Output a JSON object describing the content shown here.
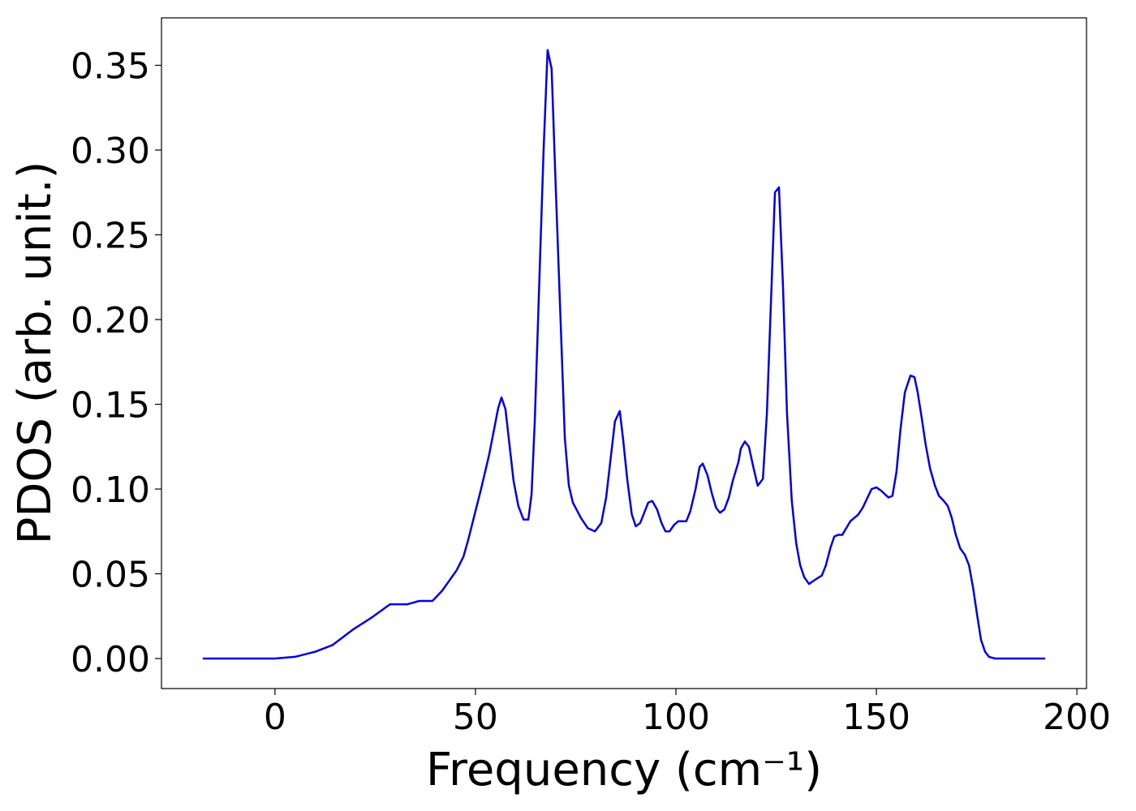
{
  "chart_data": {
    "type": "line",
    "xlabel": "Frequency (cm⁻¹)",
    "ylabel": "PDOS (arb. unit.)",
    "xlim": [
      -28.3,
      202.4
    ],
    "ylim": [
      -0.0177,
      0.378
    ],
    "xticks": [
      0,
      50,
      100,
      150,
      200
    ],
    "yticks": [
      {
        "value": 0,
        "label": "0.00"
      },
      {
        "value": 0.05,
        "label": "0.05"
      },
      {
        "value": 0.1,
        "label": "0.10"
      },
      {
        "value": 0.15,
        "label": "0.15"
      },
      {
        "value": 0.2,
        "label": "0.20"
      },
      {
        "value": 0.25,
        "label": "0.25"
      },
      {
        "value": 0.3,
        "label": "0.30"
      },
      {
        "value": 0.35,
        "label": "0.35"
      }
    ],
    "grid": false,
    "series": [
      {
        "color": "#0000ee",
        "x": [
          -18,
          0,
          5,
          10,
          14.4,
          19.4,
          24,
          28.7,
          33,
          36,
          39.3,
          41.7,
          45.3,
          47,
          48.2,
          51.4,
          53.4,
          55.7,
          56.5,
          57.5,
          59.5,
          60.7,
          62,
          63.2,
          64,
          64.8,
          67,
          68,
          69,
          70,
          72.3,
          73.3,
          74.3,
          76.3,
          78,
          79.8,
          81.4,
          82.6,
          84.8,
          86,
          86.8,
          87.9,
          89,
          90,
          91.1,
          93.1,
          94.1,
          95.3,
          96.4,
          97.4,
          98.4,
          99.6,
          100.6,
          102.6,
          103.6,
          104.9,
          105.9,
          106.7,
          107.9,
          108.9,
          110,
          111,
          112.1,
          113.2,
          114.2,
          115.6,
          116.2,
          117.2,
          118.2,
          119.4,
          120.4,
          121.7,
          122.7,
          123.7,
          124.7,
          125.7,
          126.7,
          127.7,
          128.9,
          130,
          131,
          132,
          133.2,
          134.4,
          136.4,
          137.4,
          138.5,
          139.5,
          140.5,
          141.5,
          142.5,
          143.5,
          144.5,
          145.5,
          146.6,
          147.8,
          148.8,
          150,
          151.2,
          153,
          154,
          155,
          156,
          157.1,
          158.5,
          159.5,
          160.3,
          161.3,
          162.3,
          163.4,
          164.6,
          165.6,
          166.8,
          167.8,
          168.8,
          169.8,
          170.9,
          172.1,
          173.1,
          174.1,
          175.1,
          176.1,
          177.1,
          178.1,
          179.6,
          192.1
        ],
        "values": [
          0,
          0,
          0.001,
          0.004,
          0.008,
          0.017,
          0.024,
          0.032,
          0.032,
          0.034,
          0.034,
          0.04,
          0.052,
          0.06,
          0.07,
          0.1,
          0.12,
          0.148,
          0.154,
          0.147,
          0.105,
          0.09,
          0.082,
          0.082,
          0.097,
          0.14,
          0.3,
          0.359,
          0.348,
          0.28,
          0.13,
          0.102,
          0.092,
          0.083,
          0.077,
          0.075,
          0.08,
          0.095,
          0.14,
          0.146,
          0.13,
          0.105,
          0.085,
          0.078,
          0.08,
          0.092,
          0.093,
          0.088,
          0.08,
          0.075,
          0.075,
          0.079,
          0.081,
          0.081,
          0.087,
          0.1,
          0.113,
          0.115,
          0.108,
          0.098,
          0.089,
          0.086,
          0.088,
          0.095,
          0.105,
          0.116,
          0.124,
          0.128,
          0.125,
          0.112,
          0.102,
          0.106,
          0.145,
          0.21,
          0.275,
          0.278,
          0.22,
          0.145,
          0.093,
          0.068,
          0.055,
          0.048,
          0.044,
          0.046,
          0.049,
          0.055,
          0.065,
          0.072,
          0.073,
          0.073,
          0.077,
          0.081,
          0.083,
          0.085,
          0.089,
          0.095,
          0.1,
          0.101,
          0.099,
          0.095,
          0.096,
          0.11,
          0.135,
          0.157,
          0.167,
          0.166,
          0.157,
          0.142,
          0.126,
          0.112,
          0.102,
          0.096,
          0.093,
          0.09,
          0.083,
          0.073,
          0.065,
          0.061,
          0.055,
          0.042,
          0.026,
          0.011,
          0.004,
          0.001,
          0,
          0
        ]
      }
    ]
  }
}
